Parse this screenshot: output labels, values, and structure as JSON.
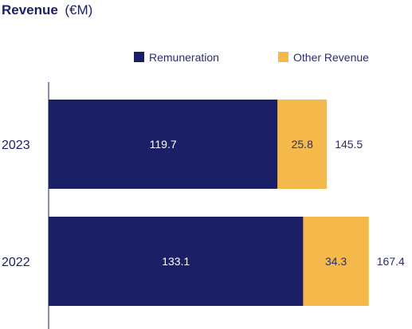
{
  "chart_data": {
    "type": "bar",
    "orientation": "horizontal",
    "stacked": true,
    "title": "Revenue",
    "title_unit": "(€M)",
    "categories": [
      "2023",
      "2022"
    ],
    "series": [
      {
        "name": "Remuneration",
        "values": [
          119.7,
          133.1
        ],
        "color": "#1a1f66"
      },
      {
        "name": "Other Revenue",
        "values": [
          25.8,
          34.3
        ],
        "color": "#f5b84a"
      }
    ],
    "totals": [
      "145.5",
      "167.4"
    ],
    "value_labels": [
      [
        "119.7",
        "133.1"
      ],
      [
        "25.8",
        "34.3"
      ]
    ],
    "xlim": [
      0,
      170
    ],
    "legend_position": "top",
    "grid": false
  }
}
